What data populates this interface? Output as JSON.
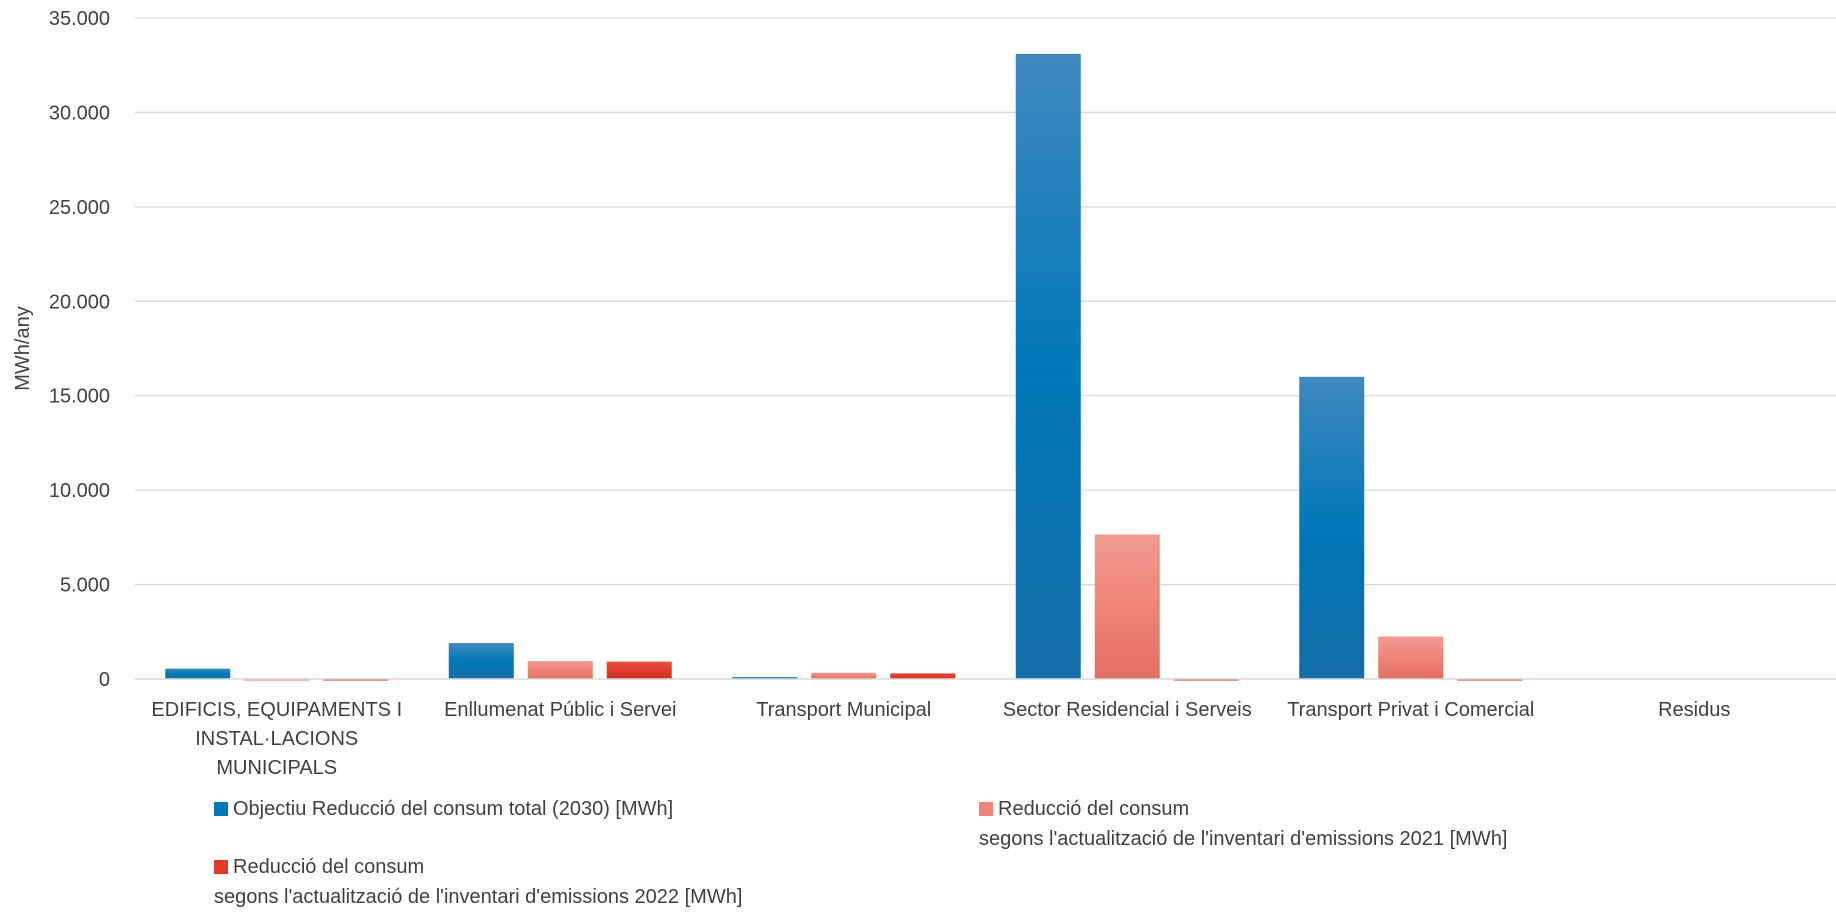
{
  "chart_data": {
    "type": "bar",
    "title": "",
    "xlabel": "",
    "ylabel": "MWh/any",
    "ylim": [
      0,
      35000
    ],
    "y_ticks": [
      "0",
      "5.000",
      "10.000",
      "15.000",
      "20.000",
      "25.000",
      "30.000",
      "35.000"
    ],
    "y_tick_values": [
      0,
      5000,
      10000,
      15000,
      20000,
      25000,
      30000,
      35000
    ],
    "grid": true,
    "legend_position": "bottom",
    "categories": [
      [
        "EDIFICIS, EQUIPAMENTS I",
        "INSTAL·LACIONS",
        "MUNICIPALS"
      ],
      [
        "Enllumenat Públic i Servei"
      ],
      [
        "Transport Municipal"
      ],
      [
        "Sector Residencial i Serveis"
      ],
      [
        "Transport Privat i Comercial"
      ],
      [
        "Residus"
      ]
    ],
    "series": [
      {
        "name": [
          "Objectiu Reducció del consum total (2030) [MWh]"
        ],
        "color_top": "#3f88bd",
        "color_mid": "#0078b8",
        "color_bottom": "#146ea8",
        "values": [
          550,
          1900,
          100,
          33100,
          16000,
          0
        ]
      },
      {
        "name": [
          "Reducció del consum",
          "segons l'actualització de l'inventari d'emissions 2021 [MWh]"
        ],
        "color_top": "#f09a90",
        "color_mid": "#f08378",
        "color_bottom": "#e0705f",
        "values": [
          -80,
          950,
          330,
          7650,
          2250,
          0
        ]
      },
      {
        "name": [
          "Reducció del consum",
          "segons l'actualització de l'inventari d'emissions 2022 [MWh]"
        ],
        "color_top": "#e8503f",
        "color_mid": "#e03a2a",
        "color_bottom": "#cc3326",
        "values": [
          -80,
          920,
          300,
          -80,
          -80,
          0
        ]
      }
    ]
  }
}
